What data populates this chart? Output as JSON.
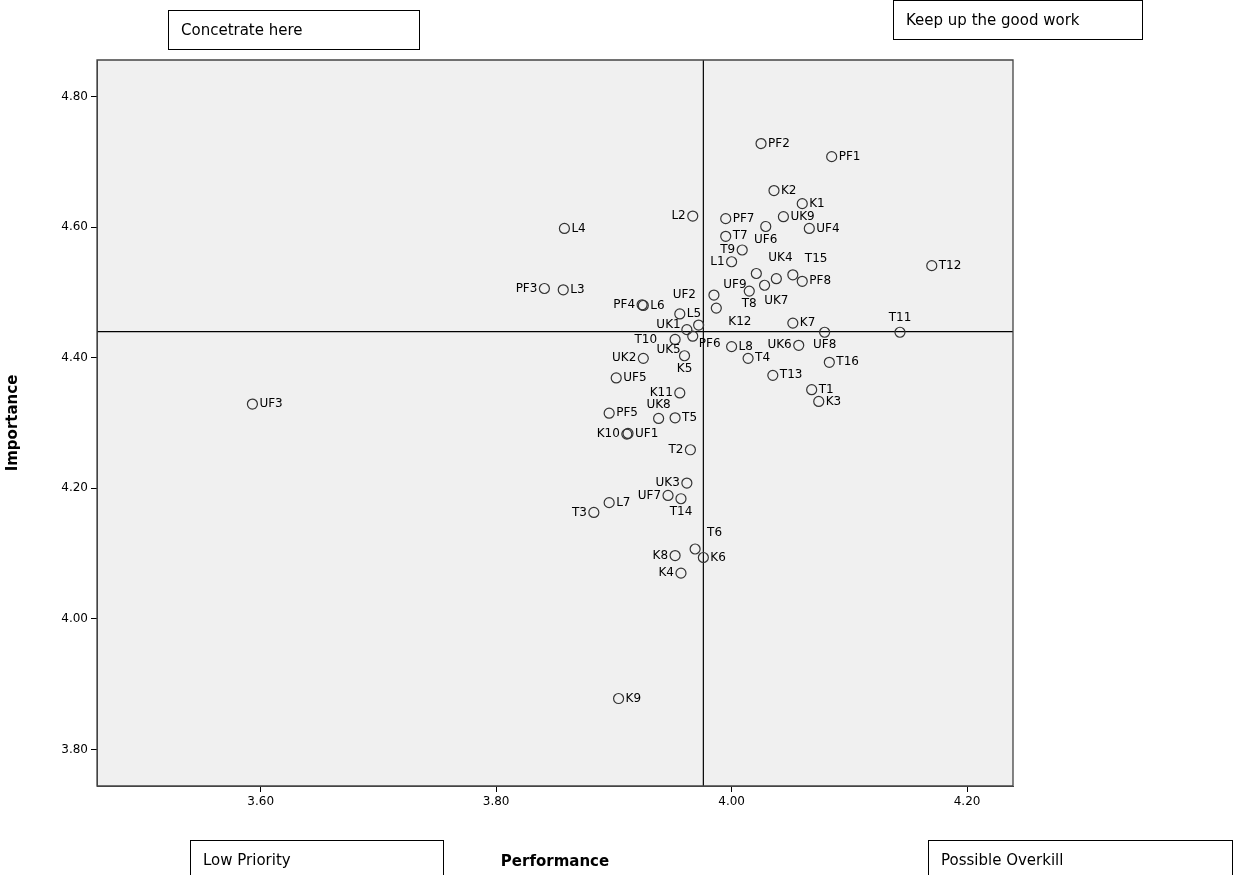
{
  "chart_data": {
    "type": "scatter",
    "xlabel": "Performance",
    "ylabel": "Importance",
    "marker": "circle",
    "xlim": [
      3.461,
      4.239
    ],
    "ylim": [
      3.744,
      4.856
    ],
    "xticks": [
      {
        "value": 3.6,
        "label": "3.60"
      },
      {
        "value": 3.8,
        "label": "3.80"
      },
      {
        "value": 4.0,
        "label": "4.00"
      },
      {
        "value": 4.2,
        "label": "4.20"
      }
    ],
    "yticks": [
      {
        "value": 3.8,
        "label": "3.80"
      },
      {
        "value": 4.0,
        "label": "4.00"
      },
      {
        "value": 4.2,
        "label": "4.20"
      },
      {
        "value": 4.4,
        "label": "4.40"
      },
      {
        "value": 4.6,
        "label": "4.60"
      },
      {
        "value": 4.8,
        "label": "4.80"
      }
    ],
    "ref_lines": [
      {
        "axis": "x",
        "value": 3.976,
        "color": "#000000"
      },
      {
        "axis": "y",
        "value": 4.44,
        "color": "#000000"
      }
    ],
    "x": [
      4.025,
      4.085,
      4.036,
      4.06,
      3.967,
      3.995,
      4.044,
      4.029,
      4.066,
      3.995,
      4.009,
      4.0,
      4.021,
      4.038,
      4.052,
      4.06,
      4.028,
      4.015,
      3.985,
      3.924,
      3.925,
      3.987,
      3.956,
      3.972,
      3.962,
      3.967,
      3.952,
      4.052,
      4.079,
      4.057,
      4.0,
      4.014,
      3.96,
      3.925,
      4.083,
      3.902,
      4.035,
      3.956,
      4.068,
      4.074,
      3.896,
      3.938,
      3.952,
      3.911,
      3.912,
      3.965,
      3.962,
      3.946,
      3.957,
      3.896,
      3.883,
      3.969,
      3.976,
      3.952,
      3.957,
      3.904,
      3.593,
      3.858,
      3.841,
      3.857,
      4.17,
      4.143
    ],
    "series": [
      {
        "color": "#333333",
        "values": [
          4.728,
          4.708,
          4.656,
          4.636,
          4.617,
          4.613,
          4.616,
          4.601,
          4.598,
          4.586,
          4.565,
          4.547,
          4.529,
          4.521,
          4.527,
          4.517,
          4.511,
          4.502,
          4.496,
          4.481,
          4.48,
          4.476,
          4.467,
          4.45,
          4.443,
          4.433,
          4.428,
          4.453,
          4.439,
          4.419,
          4.417,
          4.399,
          4.403,
          4.399,
          4.393,
          4.369,
          4.373,
          4.346,
          4.351,
          4.333,
          4.315,
          4.307,
          4.308,
          4.283,
          4.284,
          4.259,
          4.208,
          4.189,
          4.184,
          4.178,
          4.163,
          4.107,
          4.094,
          4.097,
          4.07,
          3.878,
          4.329,
          4.598,
          4.506,
          4.504,
          4.541,
          4.439
        ]
      }
    ],
    "annotations": [
      "Concetrate here",
      "Keep up the good work",
      "Low Priority",
      "Possible Overkill",
      {
        "text": "PF2",
        "x": 4.025,
        "y": 4.728
      },
      {
        "text": "PF1",
        "x": 4.085,
        "y": 4.708
      },
      {
        "text": "K2",
        "x": 4.036,
        "y": 4.656
      },
      {
        "text": "K1",
        "x": 4.06,
        "y": 4.636
      },
      {
        "text": "L2",
        "x": 3.967,
        "y": 4.617
      },
      {
        "text": "PF7",
        "x": 3.995,
        "y": 4.613
      },
      {
        "text": "UK9",
        "x": 4.044,
        "y": 4.616
      },
      {
        "text": "UF6",
        "x": 4.029,
        "y": 4.601
      },
      {
        "text": "UF4",
        "x": 4.066,
        "y": 4.598
      },
      {
        "text": "T7",
        "x": 3.995,
        "y": 4.586
      },
      {
        "text": "T9",
        "x": 4.009,
        "y": 4.565
      },
      {
        "text": "L1",
        "x": 4.0,
        "y": 4.547
      },
      {
        "text": "UK4",
        "x": 4.021,
        "y": 4.529
      },
      {
        "text": "UK7",
        "x": 4.038,
        "y": 4.521
      },
      {
        "text": "T15",
        "x": 4.052,
        "y": 4.527
      },
      {
        "text": "PF8",
        "x": 4.06,
        "y": 4.517
      },
      {
        "text": "UF9",
        "x": 4.028,
        "y": 4.511
      },
      {
        "text": "T8",
        "x": 4.015,
        "y": 4.502
      },
      {
        "text": "UF2",
        "x": 3.985,
        "y": 4.496
      },
      {
        "text": "PF4",
        "x": 3.924,
        "y": 4.481
      },
      {
        "text": "L6",
        "x": 3.925,
        "y": 4.48
      },
      {
        "text": "K12",
        "x": 3.987,
        "y": 4.476
      },
      {
        "text": "L5",
        "x": 3.956,
        "y": 4.467
      },
      {
        "text": "UK1",
        "x": 3.972,
        "y": 4.45
      },
      {
        "text": "PF6",
        "x": 3.962,
        "y": 4.443
      },
      {
        "text": "UK5",
        "x": 3.967,
        "y": 4.433
      },
      {
        "text": "T10",
        "x": 3.952,
        "y": 4.428
      },
      {
        "text": "K7",
        "x": 4.052,
        "y": 4.453
      },
      {
        "text": "UF8",
        "x": 4.079,
        "y": 4.439
      },
      {
        "text": "UK6",
        "x": 4.057,
        "y": 4.419
      },
      {
        "text": "L8",
        "x": 4.0,
        "y": 4.417
      },
      {
        "text": "T4",
        "x": 4.014,
        "y": 4.399
      },
      {
        "text": "K5",
        "x": 3.96,
        "y": 4.403
      },
      {
        "text": "UK2",
        "x": 3.925,
        "y": 4.399
      },
      {
        "text": "T16",
        "x": 4.083,
        "y": 4.393
      },
      {
        "text": "UF5",
        "x": 3.902,
        "y": 4.369
      },
      {
        "text": "T13",
        "x": 4.035,
        "y": 4.373
      },
      {
        "text": "K11",
        "x": 3.956,
        "y": 4.346
      },
      {
        "text": "T1",
        "x": 4.068,
        "y": 4.351
      },
      {
        "text": "K3",
        "x": 4.074,
        "y": 4.333
      },
      {
        "text": "PF5",
        "x": 3.896,
        "y": 4.315
      },
      {
        "text": "UK8",
        "x": 3.938,
        "y": 4.307
      },
      {
        "text": "T5",
        "x": 3.952,
        "y": 4.308
      },
      {
        "text": "K10",
        "x": 3.911,
        "y": 4.283
      },
      {
        "text": "UF1",
        "x": 3.912,
        "y": 4.284
      },
      {
        "text": "T2",
        "x": 3.965,
        "y": 4.259
      },
      {
        "text": "UK3",
        "x": 3.962,
        "y": 4.208
      },
      {
        "text": "UF7",
        "x": 3.946,
        "y": 4.189
      },
      {
        "text": "T14",
        "x": 3.957,
        "y": 4.184
      },
      {
        "text": "L7",
        "x": 3.896,
        "y": 4.178
      },
      {
        "text": "T3",
        "x": 3.883,
        "y": 4.163
      },
      {
        "text": "T6",
        "x": 3.969,
        "y": 4.107
      },
      {
        "text": "K6",
        "x": 3.976,
        "y": 4.094
      },
      {
        "text": "K8",
        "x": 3.952,
        "y": 4.097
      },
      {
        "text": "K4",
        "x": 3.957,
        "y": 4.07
      },
      {
        "text": "K9",
        "x": 3.904,
        "y": 3.878
      },
      {
        "text": "UF3",
        "x": 3.593,
        "y": 4.329
      },
      {
        "text": "L4",
        "x": 3.858,
        "y": 4.598
      },
      {
        "text": "PF3",
        "x": 3.841,
        "y": 4.506
      },
      {
        "text": "L3",
        "x": 3.857,
        "y": 4.504
      },
      {
        "text": "T12",
        "x": 4.17,
        "y": 4.541
      },
      {
        "text": "T11",
        "x": 4.143,
        "y": 4.439
      }
    ]
  }
}
